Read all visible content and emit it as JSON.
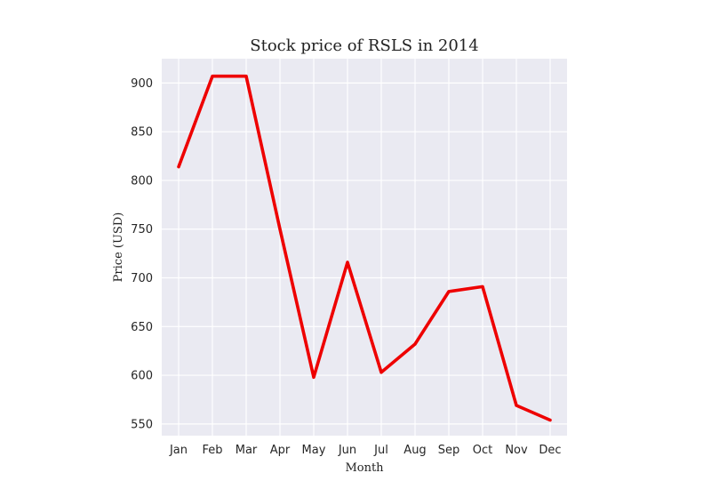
{
  "chart_data": {
    "type": "line",
    "title": "Stock price of RSLS in 2014",
    "xlabel": "Month",
    "ylabel": "Price (USD)",
    "categories": [
      "Jan",
      "Feb",
      "Mar",
      "Apr",
      "May",
      "Jun",
      "Jul",
      "Aug",
      "Sep",
      "Oct",
      "Nov",
      "Dec"
    ],
    "series": [
      {
        "values": [
          814,
          907,
          907,
          750,
          598,
          716,
          603,
          632,
          686,
          691,
          569,
          554
        ],
        "color": "#ee0000"
      }
    ],
    "yticks": [
      550,
      600,
      650,
      700,
      750,
      800,
      850,
      900
    ],
    "ylim": [
      538,
      925
    ],
    "grid": true,
    "background": "#eaeaf2"
  }
}
